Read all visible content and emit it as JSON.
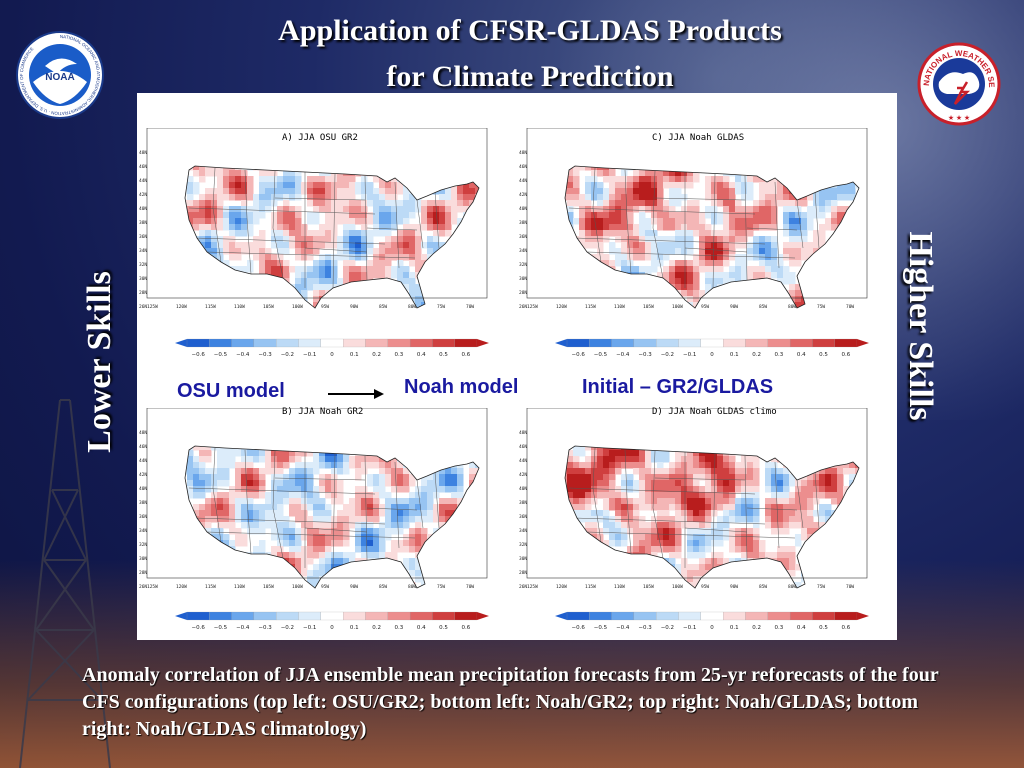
{
  "slide": {
    "title_line1": "Application of CFSR-GLDAS Products",
    "title_line2": "for Climate Prediction",
    "left_label": "Lower Skills",
    "right_label": "Higher Skills",
    "annotations": {
      "osu": "OSU model",
      "noah": "Noah model",
      "initial": "Initial – GR2/GLDAS"
    },
    "caption": "Anomaly correlation of JJA ensemble mean precipitation forecasts from 25-yr reforecasts of the four CFS configurations (top left: OSU/GR2; bottom left: Noah/GR2; top right: Noah/GLDAS; bottom right: Noah/GLDAS climatology)",
    "logos": {
      "left": "noaa-logo",
      "left_text": "NOAA",
      "left_ring": "NATIONAL OCEANIC AND ATMOSPHERIC ADMINISTRATION · U.S. DEPARTMENT OF COMMERCE",
      "right": "nws-logo",
      "right_ring": "NATIONAL WEATHER SERVICE"
    }
  },
  "maps": [
    {
      "id": "A",
      "title": "A) JJA OSU GR2",
      "panel": "top-left"
    },
    {
      "id": "C",
      "title": "C) JJA Noah GLDAS",
      "panel": "top-right"
    },
    {
      "id": "B",
      "title": "B) JJA Noah GR2",
      "panel": "bottom-left"
    },
    {
      "id": "D",
      "title": "D) JJA Noah GLDAS climo",
      "panel": "bottom-right"
    }
  ],
  "map_axes": {
    "lat_labels": [
      "48N",
      "46N",
      "44N",
      "42N",
      "40N",
      "38N",
      "36N",
      "34N",
      "32N",
      "30N",
      "28N",
      "26N"
    ],
    "lon_labels": [
      "125W",
      "120W",
      "115W",
      "110W",
      "105W",
      "100W",
      "95W",
      "90W",
      "85W",
      "80W",
      "75W",
      "70W"
    ]
  },
  "colorbar": {
    "ticks": [
      "−0.6",
      "−0.5",
      "−0.4",
      "−0.3",
      "−0.2",
      "−0.1",
      "0",
      "0.1",
      "0.2",
      "0.3",
      "0.4",
      "0.5",
      "0.6"
    ],
    "colors": [
      "#1f5fcf",
      "#3d82e0",
      "#6aa6ec",
      "#97c4f2",
      "#bcdaf6",
      "#dcecfa",
      "#ffffff",
      "#fadcdc",
      "#f4b6b6",
      "#ec8e8e",
      "#e06666",
      "#cf3f3f",
      "#b81d1d"
    ]
  },
  "colors": {
    "background": "#121a50",
    "annotation_text": "#1a1aa0",
    "title_text": "#ffffff"
  }
}
